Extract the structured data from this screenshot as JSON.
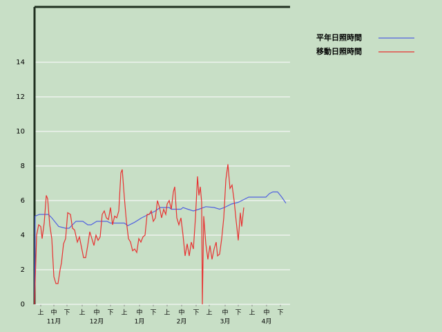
{
  "chart_data": {
    "type": "line",
    "series": [
      {
        "name": "平年日照時間",
        "color": "#5060e0",
        "x": [
          0,
          0.5,
          3.5,
          10,
          12.5,
          17.5,
          22.5,
          25,
          30,
          35,
          38.5,
          41,
          45,
          52.5,
          55,
          65,
          67.5,
          72.5,
          77.5,
          82.5,
          87.5,
          91,
          97.5,
          99,
          106,
          107.5,
          111,
          115,
          119,
          124,
          130,
          134,
          137.5,
          142.5,
          147.5,
          152.5,
          155,
          167.5,
          170,
          172.5,
          176,
          179,
          182
        ],
        "values": [
          0,
          5.1,
          5.2,
          5.2,
          5.0,
          4.5,
          4.4,
          4.4,
          4.8,
          4.8,
          4.6,
          4.6,
          4.8,
          4.8,
          4.7,
          4.7,
          4.55,
          4.75,
          5.0,
          5.2,
          5.4,
          5.6,
          5.6,
          5.5,
          5.5,
          5.6,
          5.5,
          5.4,
          5.5,
          5.65,
          5.6,
          5.5,
          5.6,
          5.8,
          5.9,
          6.1,
          6.2,
          6.2,
          6.4,
          6.5,
          6.5,
          6.2,
          5.85
        ]
      },
      {
        "name": "移動日照時間",
        "color": "#e83030",
        "x": [
          0,
          1.5,
          3,
          4.5,
          5.5,
          7,
          8.5,
          9.5,
          11,
          12.5,
          14,
          15.5,
          17,
          18.5,
          19.5,
          21,
          22.5,
          24,
          26,
          27.5,
          29,
          31,
          32.5,
          34,
          35.5,
          37,
          38.5,
          40,
          41.5,
          43,
          44.5,
          46,
          47.5,
          49,
          50.5,
          52,
          53.5,
          55,
          56.5,
          58,
          59.5,
          61,
          62.5,
          63.5,
          65,
          66.5,
          68,
          69.5,
          71,
          72.5,
          74,
          75.5,
          77,
          78.5,
          80,
          81.5,
          83,
          84.5,
          86,
          87.5,
          89,
          90.5,
          92,
          93.5,
          95,
          96,
          97.5,
          99,
          100.5,
          101.5,
          103,
          104.5,
          106,
          107.5,
          109,
          110.5,
          112,
          113.5,
          115,
          116.5,
          118,
          119,
          120,
          121,
          121.5,
          122.5,
          124,
          125.5,
          127,
          128.5,
          130,
          131.5,
          132.5,
          134,
          135.5,
          137,
          138.5,
          140,
          141.5,
          143,
          144.5,
          146,
          147.5,
          149,
          150,
          151.5
        ],
        "values": [
          0,
          4.0,
          4.6,
          4.5,
          3.8,
          4.7,
          6.3,
          6.1,
          4.6,
          3.8,
          1.6,
          1.2,
          1.2,
          2.0,
          2.4,
          3.5,
          3.8,
          5.3,
          5.2,
          4.4,
          4.3,
          3.6,
          3.9,
          3.3,
          2.7,
          2.7,
          3.4,
          4.2,
          3.8,
          3.4,
          4.0,
          3.7,
          3.9,
          5.2,
          5.4,
          5.0,
          4.9,
          5.6,
          4.6,
          5.1,
          5.0,
          5.4,
          7.6,
          7.8,
          6.2,
          4.8,
          3.8,
          3.6,
          3.1,
          3.2,
          3.0,
          3.8,
          3.6,
          3.9,
          4.0,
          5.2,
          5.2,
          5.4,
          4.8,
          5.0,
          6.0,
          5.6,
          5.0,
          5.5,
          5.2,
          5.8,
          6.0,
          5.5,
          6.5,
          6.8,
          5.0,
          4.6,
          5.0,
          4.0,
          2.8,
          3.5,
          2.8,
          3.6,
          3.2,
          5.0,
          7.4,
          6.3,
          6.8,
          5.9,
          0,
          5.1,
          3.5,
          2.6,
          3.4,
          2.6,
          3.2,
          3.6,
          2.8,
          2.9,
          3.8,
          5.0,
          7.2,
          8.1,
          6.7,
          6.9,
          6.0,
          4.8,
          3.7,
          5.3,
          4.5,
          5.6
        ]
      }
    ],
    "xlim": [
      0,
      185
    ],
    "xticks": [
      {
        "value": 4.5,
        "label": "上"
      },
      {
        "value": 14,
        "label": "中"
      },
      {
        "value": 23.5,
        "label": "下"
      },
      {
        "value": 34.5,
        "label": "上"
      },
      {
        "value": 45,
        "label": "中"
      },
      {
        "value": 55,
        "label": "下"
      },
      {
        "value": 65,
        "label": "上"
      },
      {
        "value": 76,
        "label": "中"
      },
      {
        "value": 86,
        "label": "下"
      },
      {
        "value": 96,
        "label": "上"
      },
      {
        "value": 106.5,
        "label": "中"
      },
      {
        "value": 117,
        "label": "下"
      },
      {
        "value": 126.5,
        "label": "上"
      },
      {
        "value": 138,
        "label": "中"
      },
      {
        "value": 147.5,
        "label": "下"
      },
      {
        "value": 157.5,
        "label": "上"
      },
      {
        "value": 168,
        "label": "中"
      },
      {
        "value": 178,
        "label": "下"
      }
    ],
    "xgroups": [
      {
        "value": 14,
        "label": "11月"
      },
      {
        "value": 45,
        "label": "12月"
      },
      {
        "value": 76,
        "label": "1月"
      },
      {
        "value": 106.5,
        "label": "2月"
      },
      {
        "value": 138,
        "label": "3月"
      },
      {
        "value": 168,
        "label": "4月"
      }
    ],
    "ylim": [
      0,
      17.2
    ],
    "yticks": [
      0,
      2,
      4,
      6,
      8,
      10,
      12,
      14
    ],
    "grid": true,
    "legend": "right"
  }
}
